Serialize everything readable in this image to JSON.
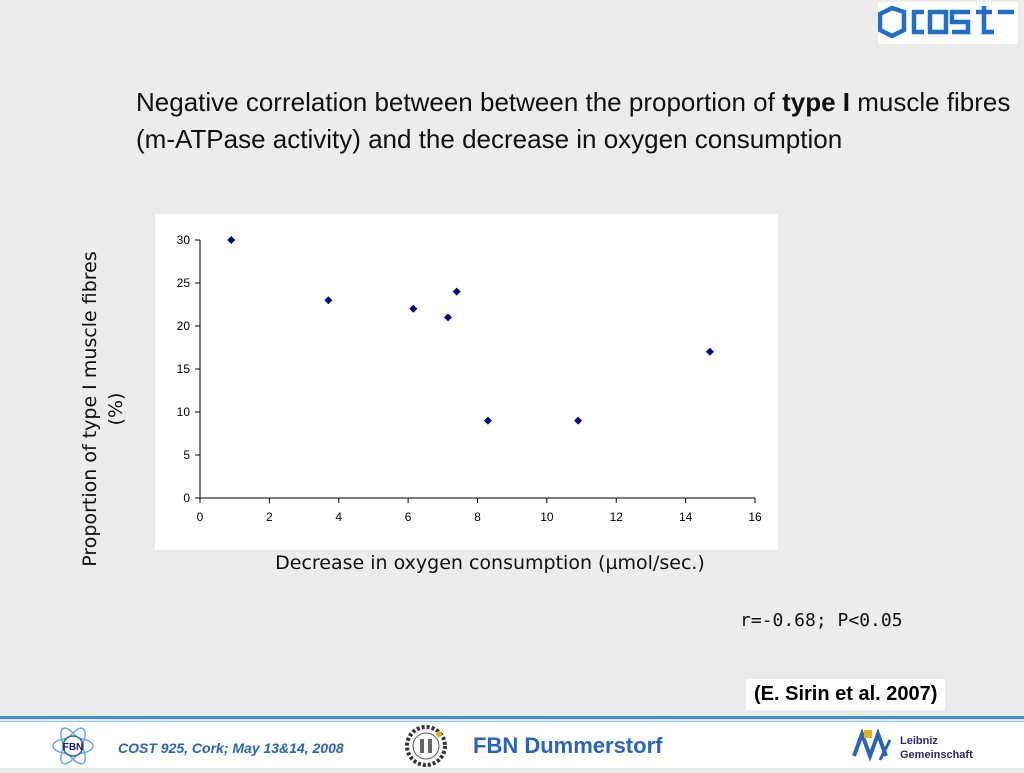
{
  "header": {
    "title_part1": "Negative correlation between between the proportion of ",
    "title_bold": "type I",
    "title_part2": " muscle fibres (m-ATPase activity) and the decrease in oxygen consumption",
    "logo": "cost-logo"
  },
  "chart_data": {
    "type": "scatter",
    "title": "",
    "xlabel": "Decrease in oxygen consumption (µmol/sec.)",
    "ylabel": "Proportion of type I muscle fibres (%)",
    "xlim": [
      0,
      16
    ],
    "ylim": [
      0,
      30
    ],
    "xticks": [
      0,
      2,
      4,
      6,
      8,
      10,
      12,
      14,
      16
    ],
    "yticks": [
      0,
      5,
      10,
      15,
      20,
      25,
      30
    ],
    "grid": false,
    "marker": "diamond",
    "color": "#00007a",
    "points": [
      {
        "x": 0.9,
        "y": 30
      },
      {
        "x": 3.7,
        "y": 23
      },
      {
        "x": 6.15,
        "y": 22
      },
      {
        "x": 7.15,
        "y": 21
      },
      {
        "x": 7.4,
        "y": 24
      },
      {
        "x": 8.3,
        "y": 9
      },
      {
        "x": 10.9,
        "y": 9
      },
      {
        "x": 14.7,
        "y": 17
      }
    ]
  },
  "stats": "r=-0.68; P<0.05",
  "citation": "(E. Sirin et al. 2007)",
  "footer": {
    "conference": "COST 925, Cork; May 13&14, 2008",
    "institute": "FBN Dummerstorf",
    "partner_logo_text_1": "Leibniz",
    "partner_logo_text_2": "Gemeinschaft",
    "fbn_logo_text": "FBN",
    "accent_color": "#2a63b8"
  }
}
